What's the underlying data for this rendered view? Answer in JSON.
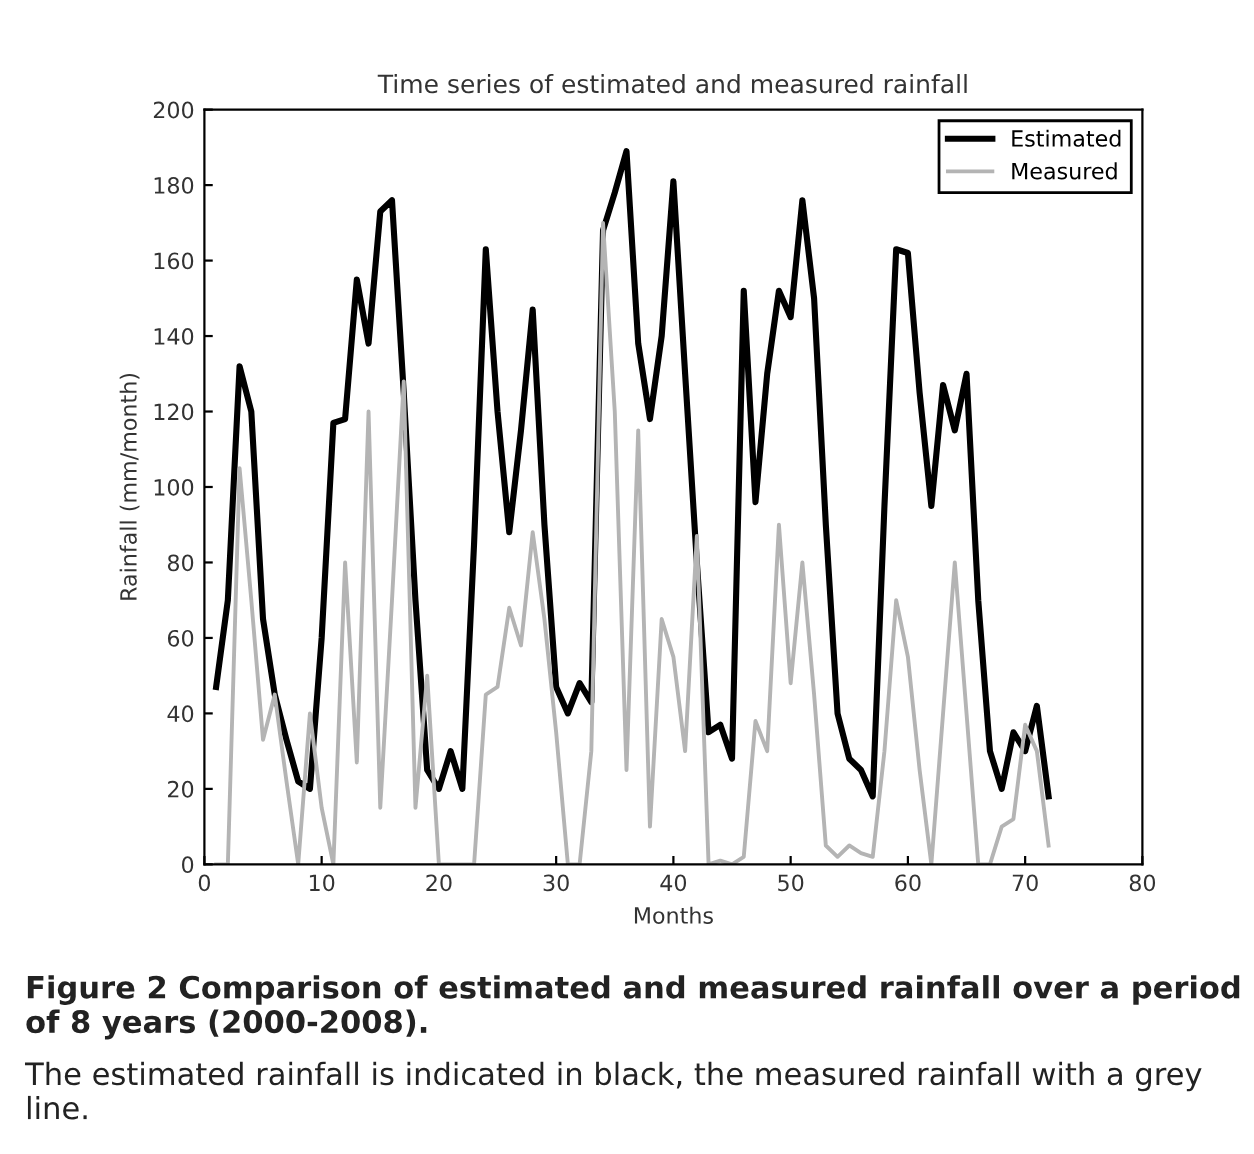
{
  "chart_data": {
    "type": "line",
    "title": "Time series of estimated and measured rainfall",
    "xlabel": "Months",
    "ylabel": "Rainfall (mm/month)",
    "x": [
      1,
      2,
      3,
      4,
      5,
      6,
      7,
      8,
      9,
      10,
      11,
      12,
      13,
      14,
      15,
      16,
      17,
      18,
      19,
      20,
      21,
      22,
      23,
      24,
      25,
      26,
      27,
      28,
      29,
      30,
      31,
      32,
      33,
      34,
      35,
      36,
      37,
      38,
      39,
      40,
      41,
      42,
      43,
      44,
      45,
      46,
      47,
      48,
      49,
      50,
      51,
      52,
      53,
      54,
      55,
      56,
      57,
      58,
      59,
      60,
      61,
      62,
      63,
      64,
      65,
      66,
      67,
      68,
      69,
      70,
      71,
      72
    ],
    "series": [
      {
        "name": "Estimated",
        "color": "#000000",
        "values": [
          47,
          70,
          132,
          120,
          65,
          45,
          33,
          22,
          20,
          60,
          117,
          118,
          155,
          138,
          173,
          176,
          125,
          70,
          25,
          20,
          30,
          20,
          85,
          163,
          120,
          88,
          115,
          147,
          90,
          47,
          40,
          48,
          43,
          168,
          178,
          189,
          138,
          118,
          140,
          181,
          130,
          80,
          35,
          37,
          28,
          152,
          96,
          130,
          152,
          145,
          176,
          150,
          90,
          40,
          28,
          25,
          18,
          95,
          163,
          162,
          125,
          95,
          127,
          115,
          130,
          70,
          30,
          20,
          35,
          30,
          42,
          18
        ]
      },
      {
        "name": "Measured",
        "color": "#b4b4b4",
        "values": [
          0,
          0,
          105,
          70,
          33,
          45,
          22,
          0,
          40,
          15,
          0,
          80,
          27,
          120,
          15,
          70,
          128,
          15,
          50,
          0,
          0,
          0,
          0,
          45,
          47,
          68,
          58,
          88,
          65,
          35,
          0,
          0,
          30,
          170,
          120,
          25,
          115,
          10,
          65,
          55,
          30,
          87,
          0,
          1,
          0,
          2,
          38,
          30,
          90,
          48,
          80,
          45,
          5,
          2,
          5,
          3,
          2,
          30,
          70,
          55,
          25,
          0,
          40,
          80,
          40,
          0,
          0,
          10,
          12,
          37,
          30,
          5
        ]
      }
    ],
    "xlim": [
      0,
      80
    ],
    "xticks": [
      0,
      10,
      20,
      30,
      40,
      50,
      60,
      70,
      80
    ],
    "ylim": [
      0,
      200
    ],
    "yticks": [
      0,
      20,
      40,
      60,
      80,
      100,
      120,
      140,
      160,
      180,
      200
    ],
    "legend": "top right",
    "grid": false,
    "annotations": [
      "Figure 2 Comparison of estimated and measured rainfall over a period of 8 years (2000-2008).",
      "The estimated rainfall is indicated in black, the measured rainfall with a grey line."
    ]
  }
}
